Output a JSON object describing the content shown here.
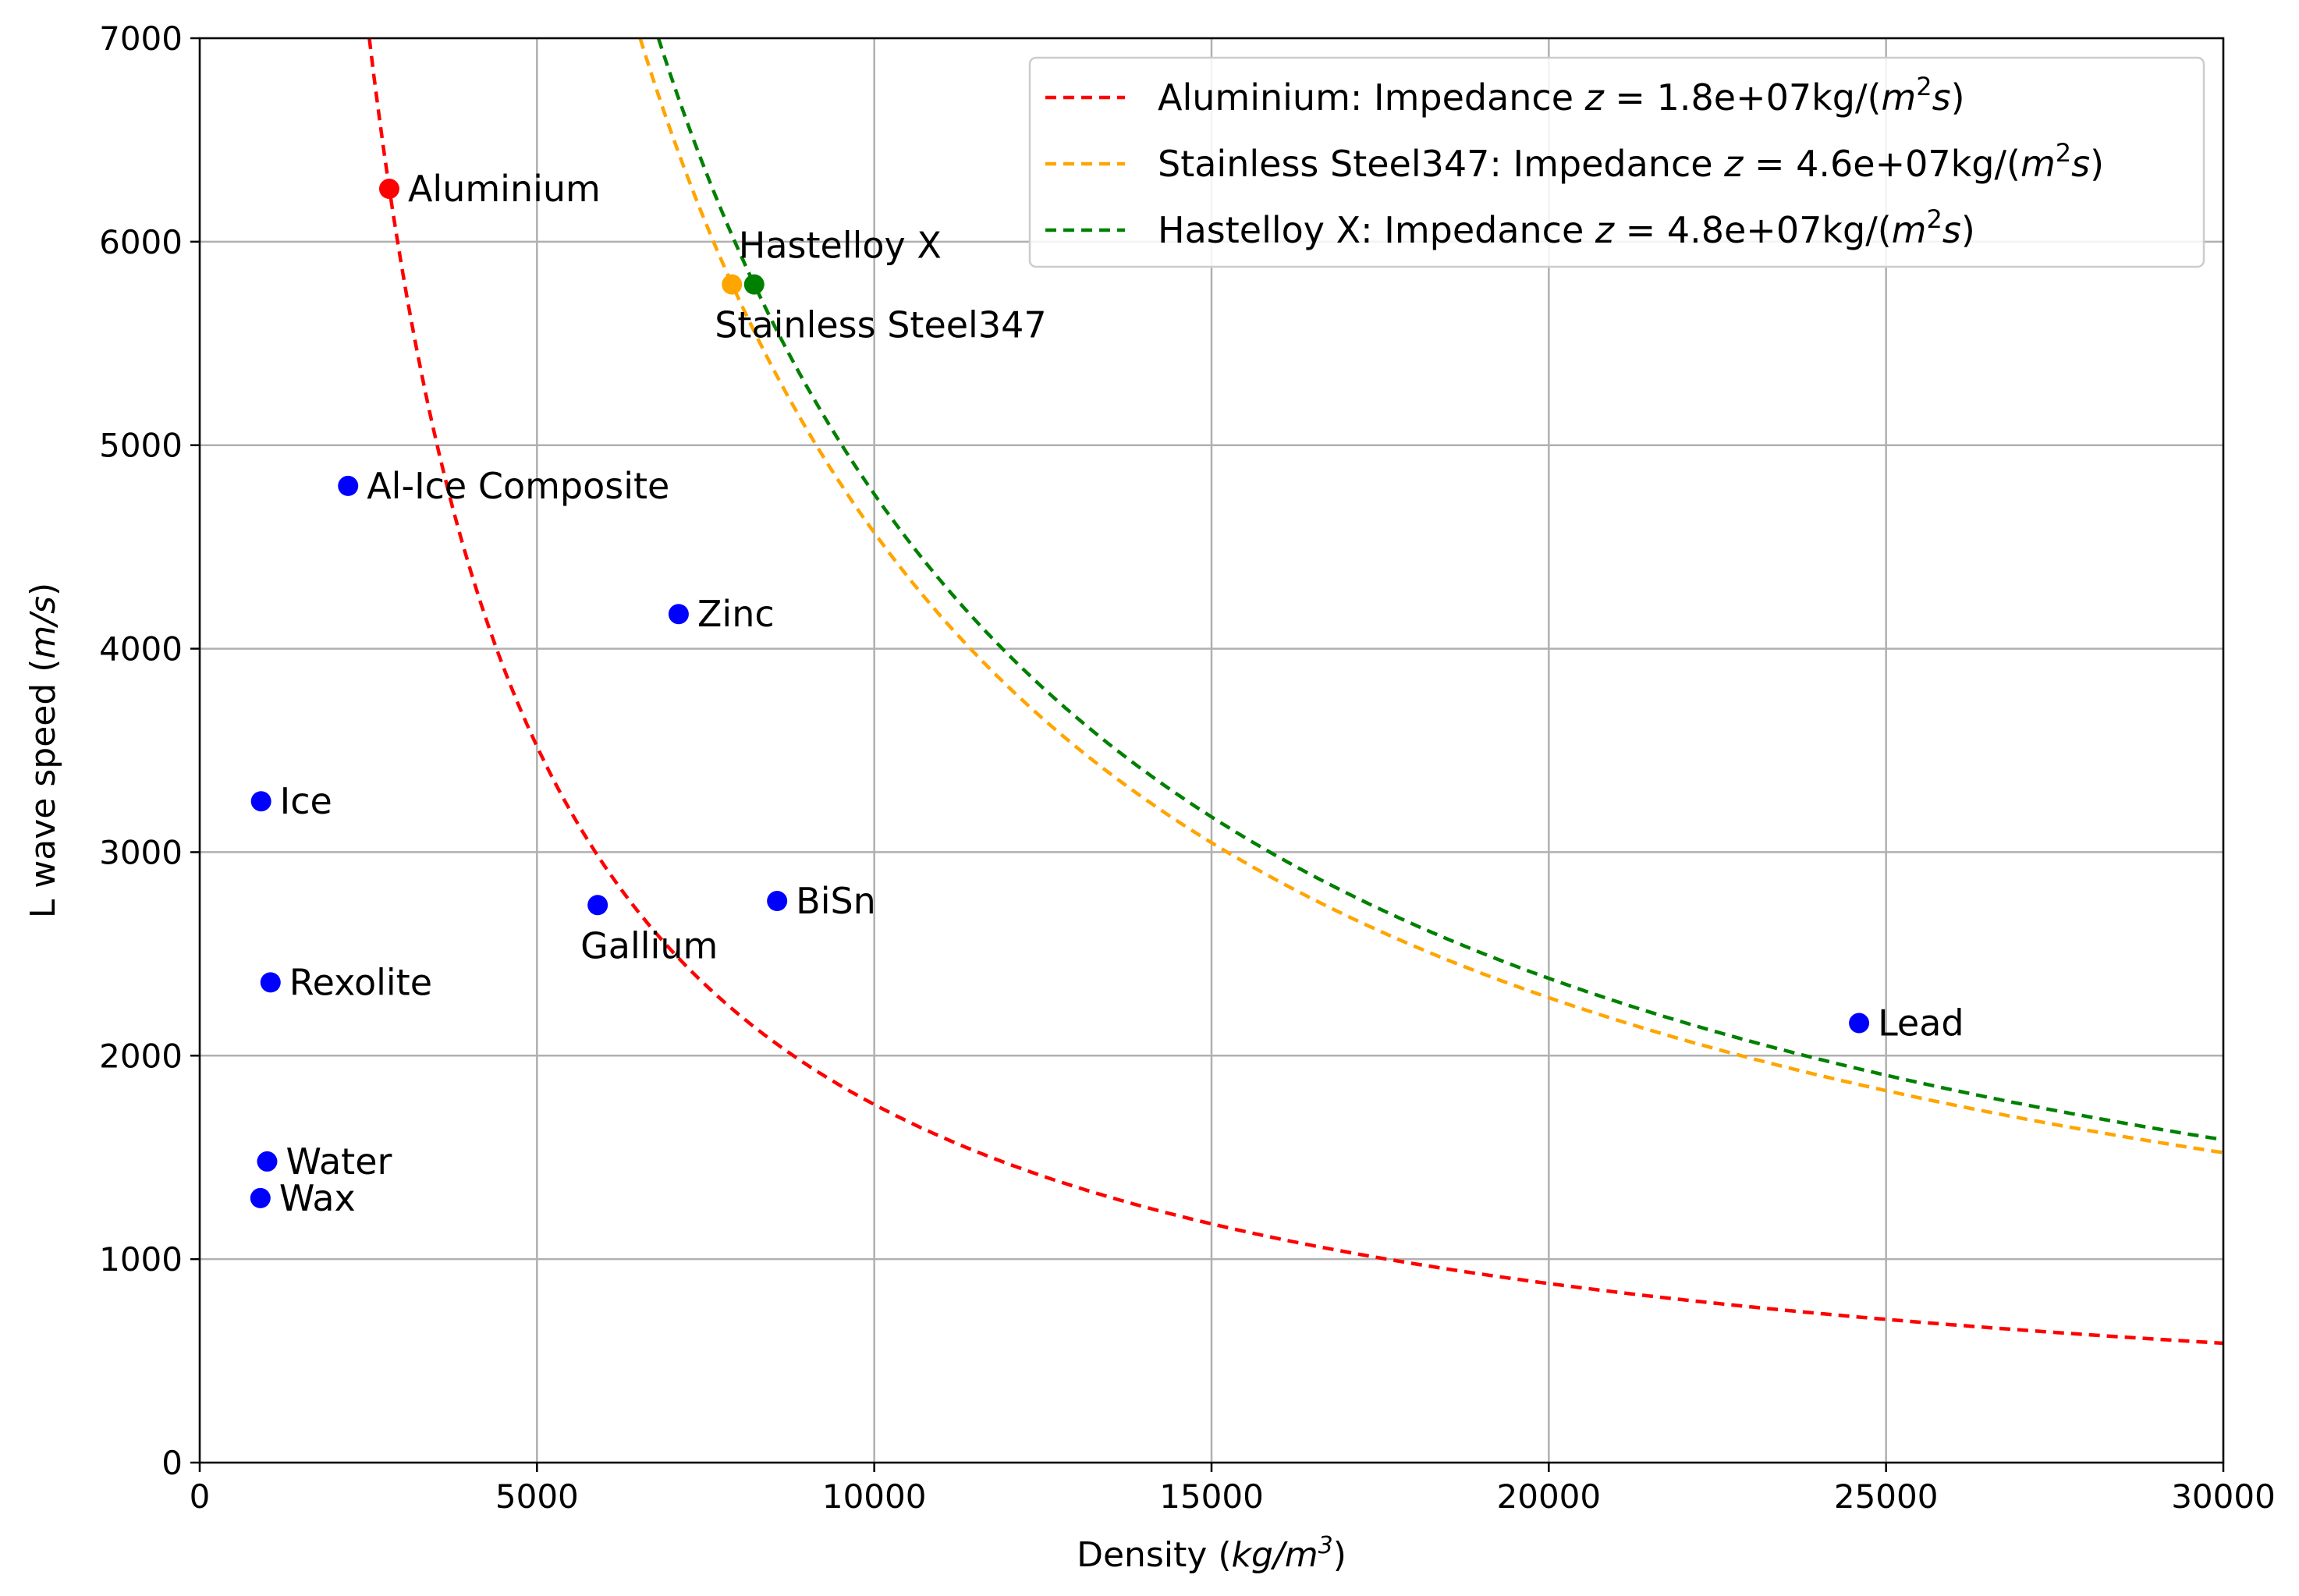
{
  "chart_data": {
    "type": "scatter",
    "title": "",
    "xlabel": "Density (kg/m³)",
    "xlabel_parts": {
      "prefix": "Density (",
      "unit": "kg/m",
      "sup": "3",
      "suffix": ")"
    },
    "ylabel": "L wave speed (m/s)",
    "ylabel_parts": {
      "prefix": "L wave speed (",
      "unit": "m/s",
      "suffix": ")"
    },
    "xlim": [
      0,
      30000
    ],
    "ylim": [
      0,
      7000
    ],
    "xticks": [
      0,
      5000,
      10000,
      15000,
      20000,
      25000,
      30000
    ],
    "yticks": [
      0,
      1000,
      2000,
      3000,
      4000,
      5000,
      6000,
      7000
    ],
    "grid": true,
    "legend_position": "top-right",
    "points": [
      {
        "label": "Aluminium",
        "x": 2810,
        "y": 6260,
        "color": "#ff0000",
        "label_pos": "right"
      },
      {
        "label": "Stainless Steel347",
        "x": 7890,
        "y": 5790,
        "color": "#ffa500",
        "label_pos": "below"
      },
      {
        "label": "Hastelloy X",
        "x": 8220,
        "y": 5790,
        "color": "#008000",
        "label_pos": "above"
      },
      {
        "label": "Al-Ice Composite",
        "x": 2200,
        "y": 4800,
        "color": "#0000ff",
        "label_pos": "right"
      },
      {
        "label": "Zinc",
        "x": 7100,
        "y": 4170,
        "color": "#0000ff",
        "label_pos": "right"
      },
      {
        "label": "Ice",
        "x": 910,
        "y": 3250,
        "color": "#0000ff",
        "label_pos": "right"
      },
      {
        "label": "Gallium",
        "x": 5900,
        "y": 2740,
        "color": "#0000ff",
        "label_pos": "below"
      },
      {
        "label": "BiSn",
        "x": 8560,
        "y": 2760,
        "color": "#0000ff",
        "label_pos": "right"
      },
      {
        "label": "Rexolite",
        "x": 1050,
        "y": 2360,
        "color": "#0000ff",
        "label_pos": "right"
      },
      {
        "label": "Lead",
        "x": 24600,
        "y": 2160,
        "color": "#0000ff",
        "label_pos": "right"
      },
      {
        "label": "Water",
        "x": 1000,
        "y": 1480,
        "color": "#0000ff",
        "label_pos": "right"
      },
      {
        "label": "Wax",
        "x": 900,
        "y": 1300,
        "color": "#0000ff",
        "label_pos": "right"
      }
    ],
    "curves": [
      {
        "name": "Aluminium: Impedance z = 1.8e+07kg/(m²s)",
        "legend_prefix": "Aluminium: Impedance ",
        "impedance_text": "1.8e+07",
        "impedance": 17600000,
        "color": "#ff0000"
      },
      {
        "name": "Stainless Steel347: Impedance z = 4.6e+07kg/(m²s)",
        "legend_prefix": "Stainless Steel347: Impedance ",
        "impedance_text": "4.6e+07",
        "impedance": 45700000,
        "color": "#ffa500"
      },
      {
        "name": "Hastelloy X: Impedance z = 4.8e+07kg/(m²s)",
        "legend_prefix": "Hastelloy X: Impedance ",
        "impedance_text": "4.8e+07",
        "impedance": 47600000,
        "color": "#008000"
      }
    ]
  }
}
